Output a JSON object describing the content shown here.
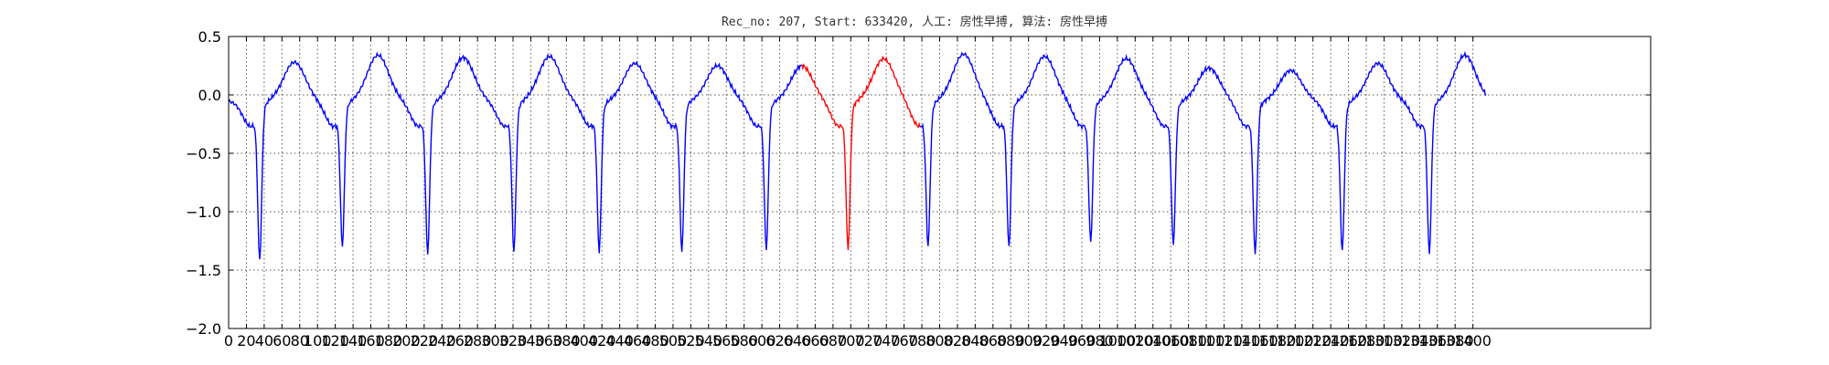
{
  "chart_data": {
    "type": "line",
    "title": "Rec_no: 207, Start: 633420, 人工: 房性早搏, 算法: 房性早搏",
    "xlabel": "",
    "ylabel": "",
    "xlim": [
      0,
      1600
    ],
    "ylim": [
      -2.0,
      0.5
    ],
    "grid": true,
    "y_ticks": [
      0.5,
      0.0,
      -0.5,
      -1.0,
      -1.5,
      -2.0
    ],
    "y_tick_labels": [
      "0.5",
      "0.0",
      "−0.5",
      "−1.0",
      "−1.5",
      "−2.0"
    ],
    "x_ticks": [
      0,
      20,
      40,
      60,
      80,
      100,
      120,
      140,
      160,
      180,
      200,
      220,
      240,
      260,
      280,
      300,
      320,
      340,
      360,
      380,
      400,
      420,
      440,
      460,
      480,
      500,
      520,
      540,
      560,
      580,
      600,
      620,
      640,
      660,
      680,
      700,
      720,
      740,
      760,
      780,
      800,
      820,
      840,
      860,
      880,
      900,
      920,
      940,
      960,
      980,
      1000,
      1020,
      1040,
      1060,
      1080,
      1100,
      1120,
      1140,
      1160,
      1180,
      1200,
      1220,
      1240,
      1260,
      1280,
      1300,
      1320,
      1340,
      1360,
      1380,
      1400
    ],
    "x_tick_labels": [
      "0",
      "20",
      "40",
      "60",
      "80",
      "100",
      "120",
      "140",
      "160",
      "180",
      "200",
      "220",
      "240",
      "260",
      "280",
      "300",
      "320",
      "340",
      "360",
      "380",
      "400",
      "420",
      "440",
      "460",
      "480",
      "500",
      "520",
      "540",
      "560",
      "580",
      "600",
      "620",
      "640",
      "660",
      "680",
      "700",
      "720",
      "740",
      "760",
      "780",
      "800",
      "820",
      "840",
      "860",
      "880",
      "900",
      "920",
      "940",
      "960",
      "980",
      "1000",
      "1020",
      "1040",
      "1060",
      "1080",
      "1100",
      "1120",
      "1140",
      "1160",
      "1180",
      "1200",
      "1220",
      "1240",
      "1260",
      "1280",
      "1300",
      "1320",
      "1340",
      "1360",
      "1380",
      "1400"
    ],
    "series": [
      {
        "color": "#0000ff",
        "role": "normal",
        "beats": [
          {
            "r_x": 35,
            "r_y": -1.5,
            "peak_x": 74,
            "peak_y": 0.28
          },
          {
            "r_x": 128,
            "r_y": -1.38,
            "peak_x": 168,
            "peak_y": 0.34
          },
          {
            "r_x": 224,
            "r_y": -1.44,
            "peak_x": 264,
            "peak_y": 0.32
          },
          {
            "r_x": 321,
            "r_y": -1.42,
            "peak_x": 361,
            "peak_y": 0.33
          },
          {
            "r_x": 417,
            "r_y": -1.42,
            "peak_x": 457,
            "peak_y": 0.27
          },
          {
            "r_x": 510,
            "r_y": -1.42,
            "peak_x": 550,
            "peak_y": 0.25
          },
          {
            "r_x": 605,
            "r_y": -1.4,
            "peak_x": 645,
            "peak_y": 0.25
          },
          {
            "r_x": 787,
            "r_y": -1.38,
            "peak_x": 827,
            "peak_y": 0.35
          },
          {
            "r_x": 878,
            "r_y": -1.38,
            "peak_x": 918,
            "peak_y": 0.33
          },
          {
            "r_x": 970,
            "r_y": -1.34,
            "peak_x": 1010,
            "peak_y": 0.31
          },
          {
            "r_x": 1063,
            "r_y": -1.36,
            "peak_x": 1103,
            "peak_y": 0.23
          },
          {
            "r_x": 1155,
            "r_y": -1.44,
            "peak_x": 1195,
            "peak_y": 0.21
          },
          {
            "r_x": 1253,
            "r_y": -1.42,
            "peak_x": 1293,
            "peak_y": 0.27
          },
          {
            "r_x": 1351,
            "r_y": -1.44,
            "peak_x": 1391,
            "peak_y": 0.34
          }
        ]
      },
      {
        "color": "#ff0000",
        "role": "highlighted",
        "x_range": [
          645,
          778
        ],
        "beats": [
          {
            "r_x": 697,
            "r_y": -1.4,
            "peak_x": 737,
            "peak_y": 0.31
          }
        ]
      }
    ],
    "x_end": 1415
  }
}
